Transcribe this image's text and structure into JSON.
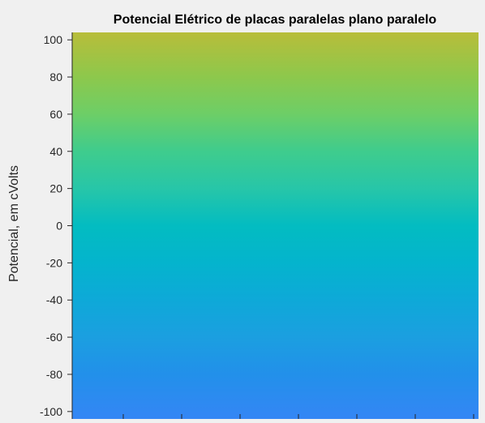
{
  "chart_data": {
    "type": "heatmap",
    "title": "Potencial Elétrico de placas paralelas plano paralelo",
    "xlabel": "",
    "ylabel": "Potencial, em cVolts",
    "ylim": [
      -104,
      104
    ],
    "y_ticks": [
      100,
      80,
      60,
      40,
      20,
      0,
      -20,
      -40,
      -60,
      -80,
      -100
    ],
    "y_tick_labels": [
      "100",
      "80",
      "60",
      "40",
      "20",
      "0",
      "-20",
      "-40",
      "-60",
      "-80",
      "-100"
    ],
    "x_tick_count": 7,
    "x_tick_labels": [],
    "grid": false,
    "colorscale": [
      {
        "value": 104,
        "color": "#b8bd3a"
      },
      {
        "value": 80,
        "color": "#8dc84c"
      },
      {
        "value": 60,
        "color": "#6dce67"
      },
      {
        "value": 40,
        "color": "#3fcc8d"
      },
      {
        "value": 20,
        "color": "#27c6a8"
      },
      {
        "value": 0,
        "color": "#03bcc1"
      },
      {
        "value": -20,
        "color": "#04b4cd"
      },
      {
        "value": -40,
        "color": "#0ea9d8"
      },
      {
        "value": -60,
        "color": "#1b9fe0"
      },
      {
        "value": -80,
        "color": "#2290ea"
      },
      {
        "value": -104,
        "color": "#3486f5"
      }
    ]
  }
}
